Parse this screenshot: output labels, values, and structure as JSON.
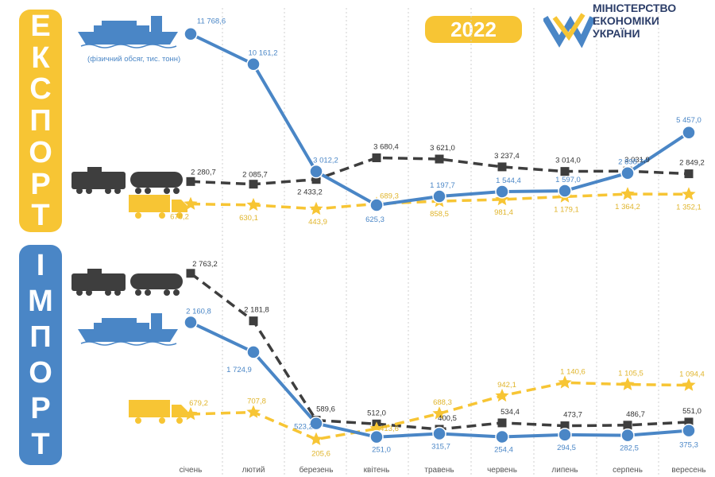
{
  "year": "2022",
  "ministry": {
    "line1": "МІНІСТЕРСТВО",
    "line2": "ЕКОНОМІКИ",
    "line3": "УКРАЇНИ"
  },
  "export_label": [
    "Е",
    "К",
    "С",
    "П",
    "О",
    "Р",
    "Т"
  ],
  "import_label": [
    "І",
    "М",
    "П",
    "О",
    "Р",
    "Т"
  ],
  "ship_note": "(фізичний обсяг, тис. тонн)",
  "colors": {
    "blue": "#4a86c6",
    "yellow": "#f7c534",
    "dark": "#3e3e3e",
    "navy": "#2c3e69"
  },
  "icons": {
    "ship": "cargo-ship-icon",
    "train": "tank-train-icon",
    "truck": "truck-icon"
  },
  "chart_data": [
    {
      "type": "line",
      "panel": "export",
      "categories": [
        "січень",
        "лютий",
        "березень",
        "квітень",
        "травень",
        "червень",
        "липень",
        "серпень",
        "вересень"
      ],
      "series": [
        {
          "mode": "ship",
          "color": "#4a86c6",
          "marker": "circle",
          "dash": false,
          "values": [
            11768.6,
            10161.2,
            3012.2,
            625.3,
            1197.7,
            1544.4,
            1597.0,
            2898.7,
            5457.0
          ],
          "labels": [
            "11 768,6",
            "10 161,2",
            "3 012,2",
            "625,3",
            "1 197,7",
            "1 544,4",
            "1 597,0",
            "2 898,7",
            "5 457,0"
          ]
        },
        {
          "mode": "rail",
          "color": "#3e3e3e",
          "marker": "square",
          "dash": true,
          "values": [
            2280.7,
            2085.7,
            2433.2,
            3680.4,
            3621.0,
            3237.4,
            3014.0,
            3031.9,
            2849.2
          ],
          "labels": [
            "2 280,7",
            "2 085,7",
            "2 433,2",
            "3 680,4",
            "3 621,0",
            "3 237,4",
            "3 014,0",
            "3 031,9",
            "2 849,2"
          ]
        },
        {
          "mode": "road",
          "color": "#f7c534",
          "marker": "star",
          "dash": true,
          "values": [
            678.2,
            630.1,
            443.9,
            689.3,
            858.5,
            981.4,
            1179.1,
            1364.2,
            1352.1
          ],
          "labels": [
            "678,2",
            "630,1",
            "443,9",
            "689,3",
            "858,5",
            "981,4",
            "1 179,1",
            "1 364,2",
            "1 352,1"
          ]
        }
      ]
    },
    {
      "type": "line",
      "panel": "import",
      "categories": [
        "січень",
        "лютий",
        "березень",
        "квітень",
        "травень",
        "червень",
        "липень",
        "серпень",
        "вересень"
      ],
      "series": [
        {
          "mode": "rail",
          "color": "#3e3e3e",
          "marker": "square",
          "dash": true,
          "values": [
            2763.2,
            2181.8,
            589.6,
            512.0,
            400.5,
            534.4,
            473.7,
            486.7,
            551.0
          ],
          "labels": [
            "2 763,2",
            "2 181,8",
            "589,6",
            "512,0",
            "400,5",
            "534,4",
            "473,7",
            "486,7",
            "551,0"
          ]
        },
        {
          "mode": "ship",
          "color": "#4a86c6",
          "marker": "circle",
          "dash": false,
          "values": [
            2160.8,
            1724.9,
            523.2,
            251.0,
            315.7,
            254.4,
            294.5,
            282.5,
            375.3
          ],
          "labels": [
            "2 160,8",
            "1 724,9",
            "523,2",
            "251,0",
            "315,7",
            "254,4",
            "294,5",
            "282,5",
            "375,3"
          ]
        },
        {
          "mode": "road",
          "color": "#f7c534",
          "marker": "star",
          "dash": true,
          "values": [
            679.2,
            707.8,
            205.6,
            413.6,
            688.3,
            942.1,
            1140.6,
            1105.5,
            1094.4
          ],
          "labels": [
            "679,2",
            "707,8",
            "205,6",
            "413,6",
            "688,3",
            "942,1",
            "1 140,6",
            "1 105,5",
            "1 094,4"
          ]
        }
      ]
    }
  ]
}
